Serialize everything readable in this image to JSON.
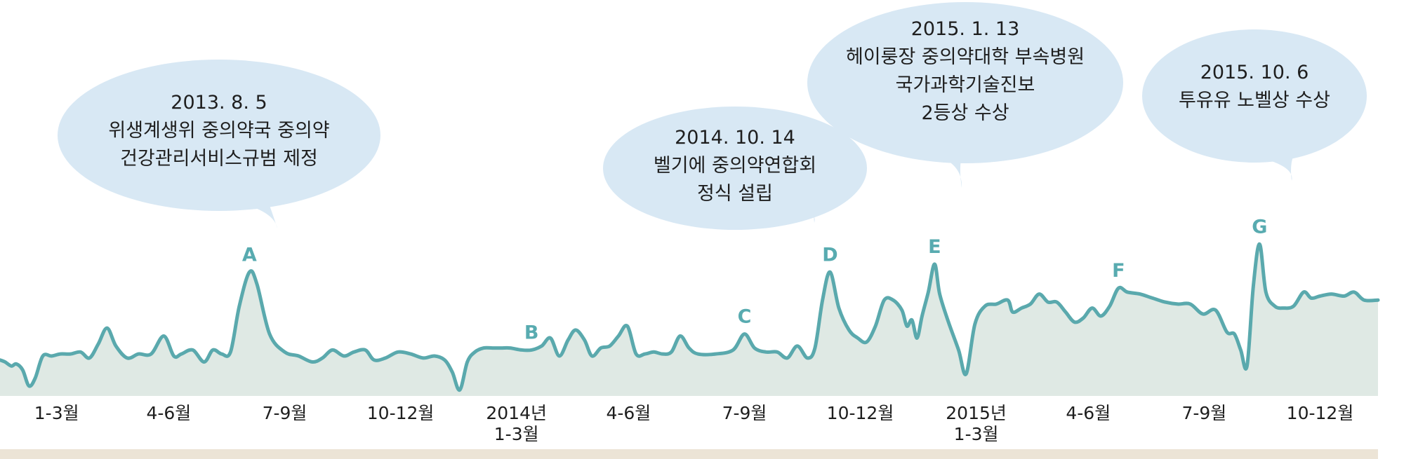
{
  "colors": {
    "line": "#5aa9ad",
    "area": "#dfe9e4",
    "bubble": "#d8e8f4",
    "footer_band": "#ece4d6",
    "marker": "#58abb0",
    "text": "#1e1e1e"
  },
  "chart_data": {
    "type": "area",
    "title": "",
    "xlabel": "",
    "ylabel": "",
    "x_range": [
      "2013-01-01",
      "2015-12-31"
    ],
    "y_range": [
      0,
      100
    ],
    "grid": false,
    "tick_labels": [
      {
        "date": "2013-02-15",
        "lines": [
          "1-3월"
        ]
      },
      {
        "date": "2013-05-15",
        "lines": [
          "4-6월"
        ]
      },
      {
        "date": "2013-08-15",
        "lines": [
          "7-9월"
        ]
      },
      {
        "date": "2013-11-15",
        "lines": [
          "10-12월"
        ]
      },
      {
        "date": "2014-02-15",
        "lines": [
          "2014년",
          "1-3월"
        ]
      },
      {
        "date": "2014-05-15",
        "lines": [
          "4-6월"
        ]
      },
      {
        "date": "2014-08-15",
        "lines": [
          "7-9월"
        ]
      },
      {
        "date": "2014-11-15",
        "lines": [
          "10-12월"
        ]
      },
      {
        "date": "2015-02-15",
        "lines": [
          "2015년",
          "1-3월"
        ]
      },
      {
        "date": "2015-05-15",
        "lines": [
          "4-6월"
        ]
      },
      {
        "date": "2015-08-15",
        "lines": [
          "7-9월"
        ]
      },
      {
        "date": "2015-11-15",
        "lines": [
          "10-12월"
        ]
      }
    ],
    "series": [
      {
        "points": [
          [
            "2013-01-01",
            18
          ],
          [
            "2013-01-05",
            17
          ],
          [
            "2013-01-10",
            15
          ],
          [
            "2013-01-14",
            16
          ],
          [
            "2013-01-19",
            13
          ],
          [
            "2013-01-24",
            5
          ],
          [
            "2013-01-29",
            9
          ],
          [
            "2013-02-04",
            20
          ],
          [
            "2013-02-11",
            20
          ],
          [
            "2013-02-18",
            21
          ],
          [
            "2013-02-26",
            21
          ],
          [
            "2013-03-06",
            22
          ],
          [
            "2013-03-13",
            19
          ],
          [
            "2013-03-20",
            26
          ],
          [
            "2013-03-27",
            34
          ],
          [
            "2013-04-03",
            25
          ],
          [
            "2013-04-12",
            19
          ],
          [
            "2013-04-21",
            21
          ],
          [
            "2013-05-01",
            21
          ],
          [
            "2013-05-11",
            30
          ],
          [
            "2013-05-19",
            20
          ],
          [
            "2013-05-25",
            21
          ],
          [
            "2013-06-03",
            23
          ],
          [
            "2013-06-12",
            17
          ],
          [
            "2013-06-19",
            23
          ],
          [
            "2013-06-26",
            21
          ],
          [
            "2013-07-03",
            22
          ],
          [
            "2013-07-10",
            45
          ],
          [
            "2013-07-18",
            62
          ],
          [
            "2013-07-24",
            56
          ],
          [
            "2013-08-03",
            31
          ],
          [
            "2013-08-15",
            22
          ],
          [
            "2013-08-26",
            20
          ],
          [
            "2013-09-06",
            17
          ],
          [
            "2013-09-14",
            19
          ],
          [
            "2013-09-22",
            23
          ],
          [
            "2013-10-01",
            20
          ],
          [
            "2013-10-09",
            22
          ],
          [
            "2013-10-18",
            23
          ],
          [
            "2013-10-25",
            18
          ],
          [
            "2013-11-03",
            19
          ],
          [
            "2013-11-13",
            22
          ],
          [
            "2013-11-23",
            21
          ],
          [
            "2013-12-03",
            19
          ],
          [
            "2013-12-12",
            20
          ],
          [
            "2013-12-20",
            18
          ],
          [
            "2013-12-26",
            12
          ],
          [
            "2014-01-01",
            3
          ],
          [
            "2014-01-07",
            17
          ],
          [
            "2014-01-13",
            22
          ],
          [
            "2014-01-20",
            24
          ],
          [
            "2014-01-27",
            24
          ],
          [
            "2014-02-03",
            24
          ],
          [
            "2014-02-10",
            24
          ],
          [
            "2014-02-19",
            23
          ],
          [
            "2014-02-27",
            23
          ],
          [
            "2014-03-07",
            25
          ],
          [
            "2014-03-14",
            29
          ],
          [
            "2014-03-21",
            20
          ],
          [
            "2014-03-28",
            28
          ],
          [
            "2014-04-03",
            33
          ],
          [
            "2014-04-10",
            28
          ],
          [
            "2014-04-16",
            20
          ],
          [
            "2014-04-23",
            24
          ],
          [
            "2014-04-30",
            25
          ],
          [
            "2014-05-07",
            30
          ],
          [
            "2014-05-14",
            35
          ],
          [
            "2014-05-21",
            21
          ],
          [
            "2014-05-28",
            21
          ],
          [
            "2014-06-04",
            22
          ],
          [
            "2014-06-11",
            21
          ],
          [
            "2014-06-18",
            22
          ],
          [
            "2014-06-25",
            30
          ],
          [
            "2014-07-02",
            24
          ],
          [
            "2014-07-09",
            21
          ],
          [
            "2014-07-23",
            21
          ],
          [
            "2014-08-06",
            23
          ],
          [
            "2014-08-15",
            31
          ],
          [
            "2014-08-23",
            24
          ],
          [
            "2014-09-01",
            22
          ],
          [
            "2014-09-10",
            22
          ],
          [
            "2014-09-18",
            19
          ],
          [
            "2014-09-26",
            25
          ],
          [
            "2014-10-04",
            19
          ],
          [
            "2014-10-10",
            24
          ],
          [
            "2014-10-16",
            48
          ],
          [
            "2014-10-22",
            62
          ],
          [
            "2014-10-29",
            44
          ],
          [
            "2014-11-06",
            33
          ],
          [
            "2014-11-13",
            29
          ],
          [
            "2014-11-20",
            27
          ],
          [
            "2014-11-27",
            35
          ],
          [
            "2014-12-04",
            48
          ],
          [
            "2014-12-11",
            48
          ],
          [
            "2014-12-18",
            43
          ],
          [
            "2014-12-22",
            35
          ],
          [
            "2014-12-26",
            38
          ],
          [
            "2014-12-30",
            29
          ],
          [
            "2015-01-03",
            40
          ],
          [
            "2015-01-08",
            52
          ],
          [
            "2015-01-13",
            66
          ],
          [
            "2015-01-17",
            51
          ],
          [
            "2015-01-24",
            37
          ],
          [
            "2015-02-01",
            23
          ],
          [
            "2015-02-07",
            11
          ],
          [
            "2015-02-14",
            36
          ],
          [
            "2015-02-22",
            45
          ],
          [
            "2015-03-03",
            46
          ],
          [
            "2015-03-12",
            48
          ],
          [
            "2015-03-16",
            42
          ],
          [
            "2015-03-23",
            44
          ],
          [
            "2015-03-30",
            46
          ],
          [
            "2015-04-06",
            51
          ],
          [
            "2015-04-13",
            47
          ],
          [
            "2015-04-20",
            47
          ],
          [
            "2015-04-27",
            42
          ],
          [
            "2015-05-04",
            37
          ],
          [
            "2015-05-11",
            39
          ],
          [
            "2015-05-18",
            44
          ],
          [
            "2015-05-25",
            40
          ],
          [
            "2015-06-01",
            45
          ],
          [
            "2015-06-08",
            54
          ],
          [
            "2015-06-15",
            52
          ],
          [
            "2015-06-25",
            51
          ],
          [
            "2015-07-05",
            49
          ],
          [
            "2015-07-15",
            47
          ],
          [
            "2015-07-25",
            46
          ],
          [
            "2015-08-04",
            46
          ],
          [
            "2015-08-14",
            41
          ],
          [
            "2015-08-24",
            43
          ],
          [
            "2015-09-02",
            32
          ],
          [
            "2015-09-08",
            31
          ],
          [
            "2015-09-13",
            23
          ],
          [
            "2015-09-18",
            15
          ],
          [
            "2015-09-23",
            55
          ],
          [
            "2015-09-28",
            76
          ],
          [
            "2015-10-03",
            52
          ],
          [
            "2015-10-10",
            45
          ],
          [
            "2015-10-17",
            44
          ],
          [
            "2015-10-25",
            45
          ],
          [
            "2015-11-02",
            52
          ],
          [
            "2015-11-08",
            49
          ],
          [
            "2015-11-15",
            50
          ],
          [
            "2015-11-24",
            51
          ],
          [
            "2015-12-04",
            50
          ],
          [
            "2015-12-12",
            52
          ],
          [
            "2015-12-20",
            48
          ],
          [
            "2015-12-31",
            48
          ]
        ]
      }
    ],
    "annotations": [
      {
        "letter": "A",
        "date": "2013-07-18",
        "value": 62,
        "bubble": [
          "2013. 8. 5",
          "위생계생위 중의약국 중의약",
          "건강관리서비스규범 제정"
        ]
      },
      {
        "letter": "B",
        "date": "2014-02-27",
        "value": 23,
        "bubble": []
      },
      {
        "letter": "C",
        "date": "2014-08-15",
        "value": 31,
        "bubble": []
      },
      {
        "letter": "D",
        "date": "2014-10-22",
        "value": 62,
        "bubble": [
          "2014. 10. 14",
          "벨기에 중의약연합회",
          "정식 설립"
        ]
      },
      {
        "letter": "E",
        "date": "2015-01-13",
        "value": 66,
        "bubble": [
          "2015. 1. 13",
          "헤이룽장 중의약대학 부속병원",
          "국가과학기술진보",
          "2등상 수상"
        ]
      },
      {
        "letter": "F",
        "date": "2015-06-08",
        "value": 54,
        "bubble": []
      },
      {
        "letter": "G",
        "date": "2015-09-28",
        "value": 76,
        "bubble": [
          "2015. 10. 6",
          "투유유 노벨상 수상"
        ]
      }
    ]
  }
}
